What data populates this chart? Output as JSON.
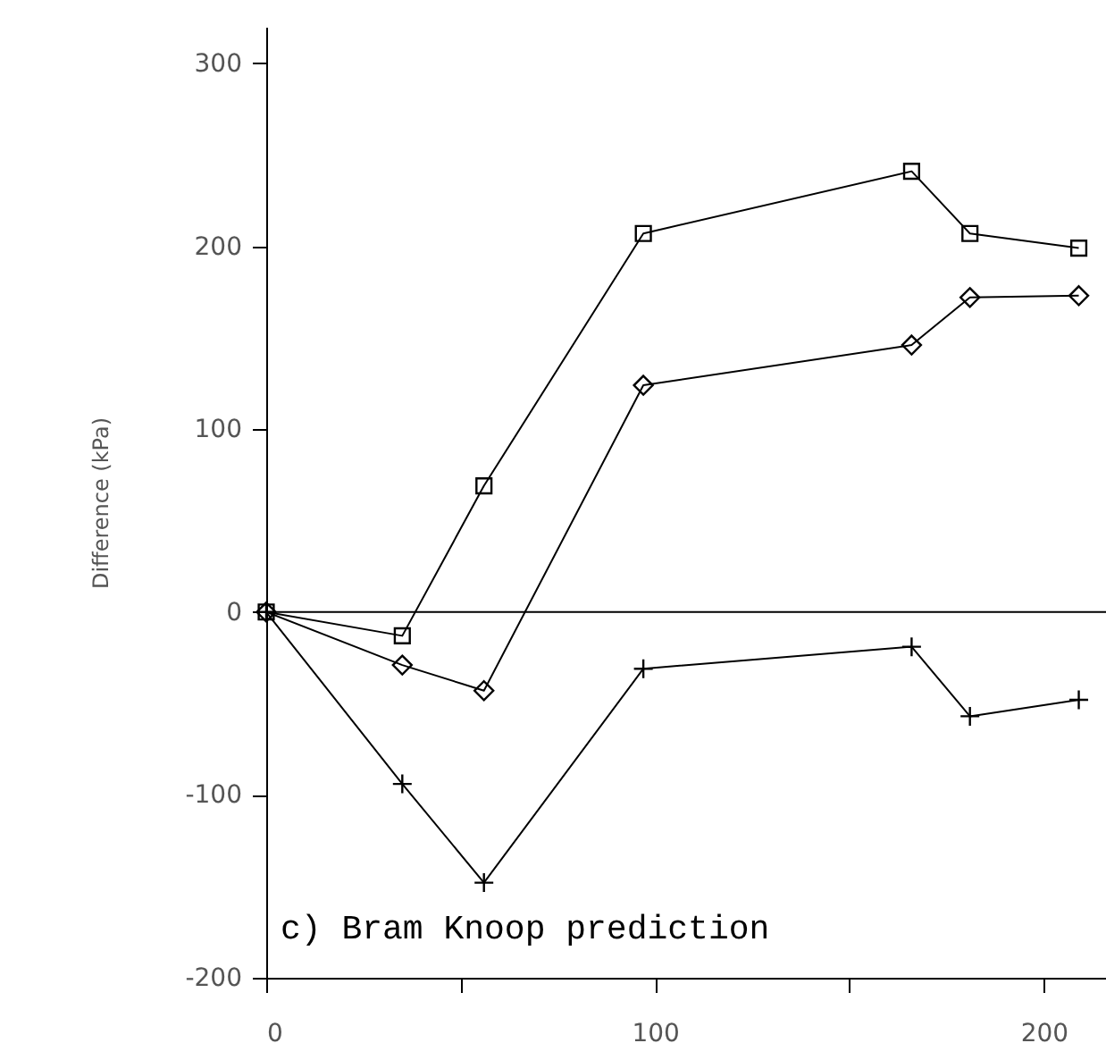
{
  "chart_data": {
    "type": "line",
    "ylabel": "Difference (kPa)",
    "x": [
      0,
      35,
      56,
      97,
      166,
      181,
      209
    ],
    "series": [
      {
        "color": "#000000",
        "marker": "square",
        "values": [
          0,
          -13,
          69,
          207,
          241,
          207,
          199
        ]
      },
      {
        "color": "#000000",
        "marker": "diamond",
        "values": [
          0,
          -29,
          -43,
          124,
          146,
          172,
          173
        ]
      },
      {
        "color": "#000000",
        "marker": "cross",
        "values": [
          0,
          -94,
          -148,
          -31,
          -19,
          -57,
          -48
        ]
      }
    ],
    "xlim": [
      0,
      216
    ],
    "xticks": [
      0,
      {
        "value": 50,
        "label": null
      },
      100,
      {
        "value": 150,
        "label": null
      },
      200
    ],
    "ylim": [
      -200,
      320
    ],
    "yticks": [
      -200,
      -100,
      0,
      100,
      200,
      300
    ],
    "ref_lines": [
      {
        "axis": "y",
        "value": 0,
        "color": "#000000"
      }
    ],
    "annotations": [
      "c) Bram Knoop prediction"
    ],
    "grid": false,
    "line_style": "solid"
  }
}
